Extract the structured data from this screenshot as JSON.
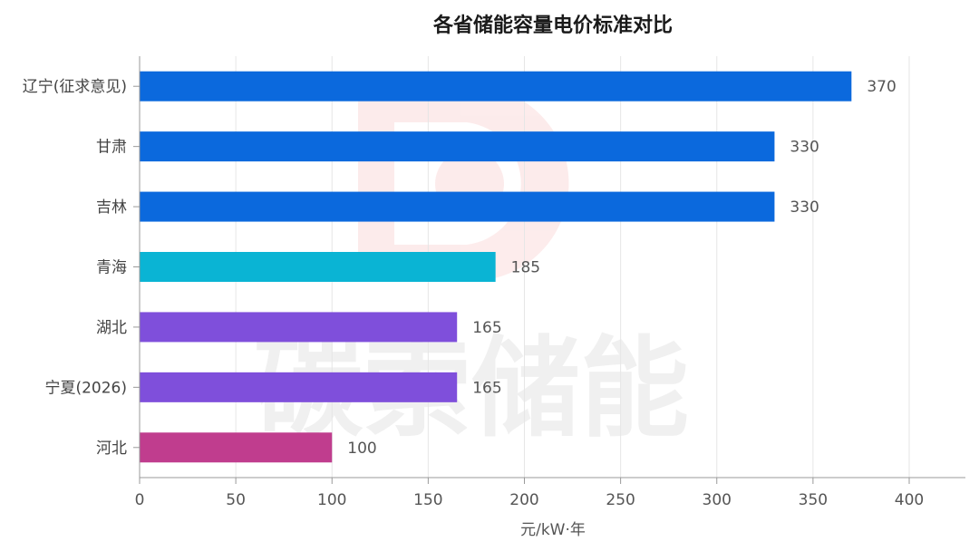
{
  "chart_data": {
    "type": "bar",
    "orientation": "horizontal",
    "title": "各省储能容量电价标准对比",
    "xlabel": "元/kW·年",
    "ylabel": "",
    "xlim": [
      0,
      430
    ],
    "xticks": [
      0,
      50,
      100,
      150,
      200,
      250,
      300,
      350,
      400
    ],
    "grid": true,
    "categories": [
      "辽宁(征求意见)",
      "甘肃",
      "吉林",
      "青海",
      "湖北",
      "宁夏(2026)",
      "河北"
    ],
    "values": [
      370,
      330,
      330,
      185,
      165,
      165,
      100
    ],
    "bar_colors": [
      "#0b69dd",
      "#0b69dd",
      "#0b69dd",
      "#0ab4d4",
      "#7f4fdb",
      "#7f4fdb",
      "#c03d8e"
    ]
  },
  "watermark": {
    "text": "碳索储能",
    "logo_color": "#e83030"
  }
}
